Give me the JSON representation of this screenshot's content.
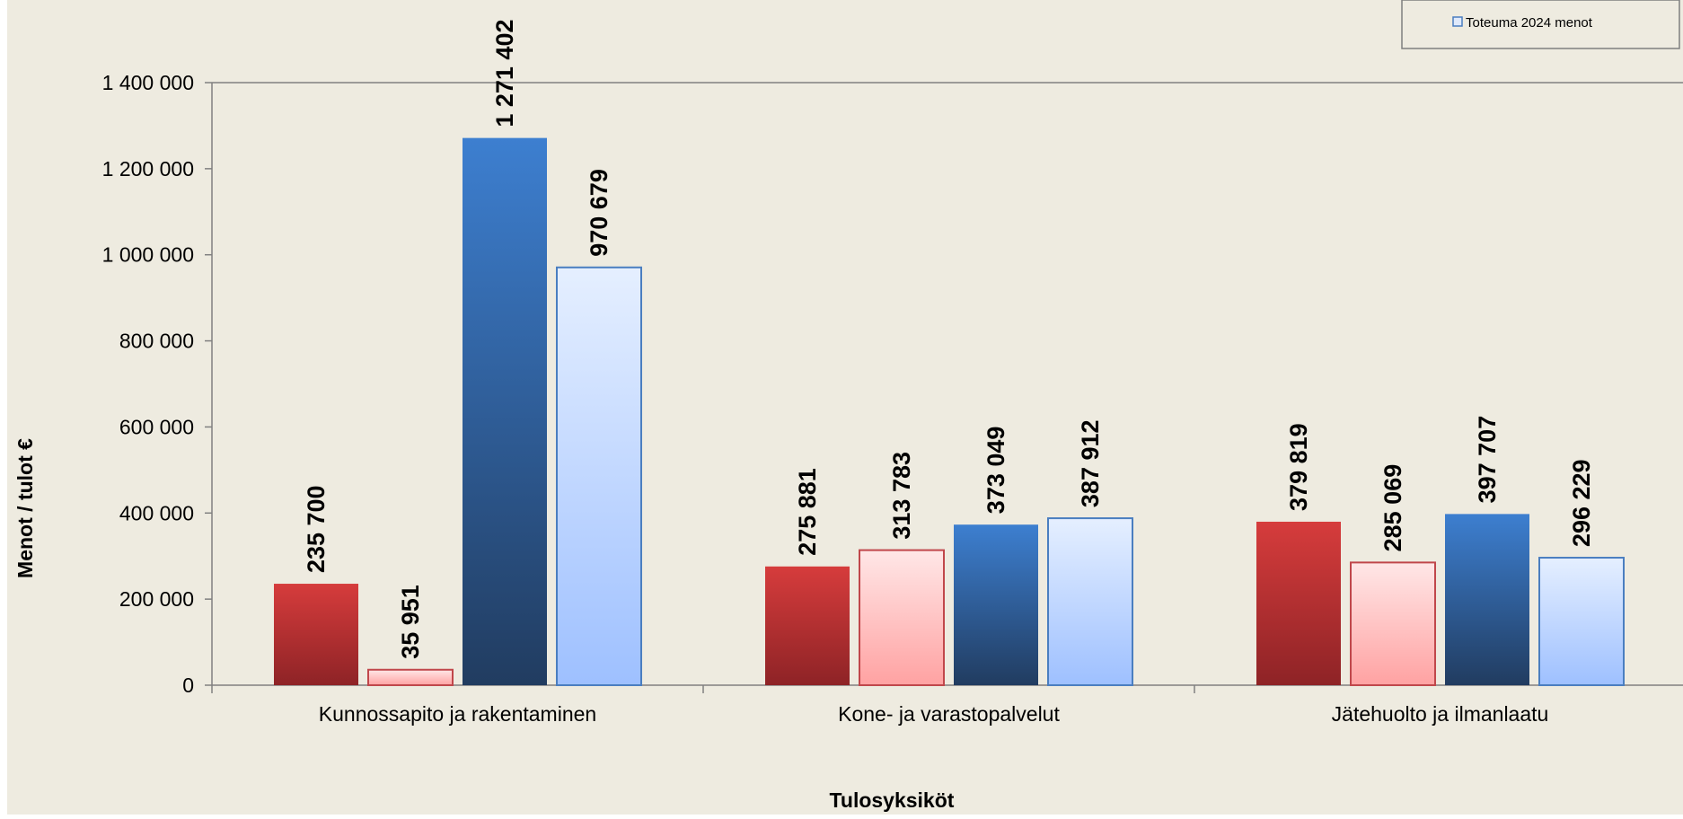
{
  "chart_data": {
    "type": "bar",
    "title": "",
    "xlabel": "Tulosyksiköt",
    "ylabel": "Menot / tulot €",
    "ylim": [
      0,
      1400000
    ],
    "yticks": [
      0,
      200000,
      400000,
      600000,
      800000,
      1000000,
      1200000,
      1400000
    ],
    "ytick_labels": [
      "0",
      "200 000",
      "400 000",
      "600 000",
      "800 000",
      "1 000 000",
      "1 200 000",
      "1 400 000"
    ],
    "categories": [
      "Kunnossapito ja rakentaminen",
      "Kone- ja varastopalvelut",
      "Jätehuolto ja ilmanlaatu"
    ],
    "series": [
      {
        "values": [
          235700,
          275881,
          379819
        ],
        "labels": [
          "235 700",
          "275 881",
          "379 819"
        ],
        "style": "solid-red"
      },
      {
        "values": [
          35951,
          313783,
          285069
        ],
        "labels": [
          "35 951",
          "313 783",
          "285 069"
        ],
        "style": "light-red"
      },
      {
        "values": [
          1271402,
          373049,
          397707
        ],
        "labels": [
          "1 271 402",
          "373 049",
          "397 707"
        ],
        "style": "solid-blue"
      },
      {
        "name": "Toteuma 2024 menot",
        "values": [
          970679,
          387912,
          296229
        ],
        "labels": [
          "970 679",
          "387 912",
          "296 229"
        ],
        "style": "light-blue"
      }
    ],
    "legend": {
      "position": "top-right",
      "visible_entries": [
        "Toteuma 2024 menot"
      ]
    },
    "grid": false,
    "colors": {
      "background": "#eeebe0",
      "solid_red_top": "#d63c3c",
      "solid_red_bottom": "#8e2326",
      "light_red_top": "#ffe7e7",
      "light_red_bottom": "#ffa2a2",
      "light_red_border": "#c0474b",
      "solid_blue_top": "#3d7fd0",
      "solid_blue_bottom": "#213c60",
      "light_blue_top": "#e5efff",
      "light_blue_bottom": "#9ec0ff",
      "light_blue_border": "#4a7ec0"
    }
  }
}
